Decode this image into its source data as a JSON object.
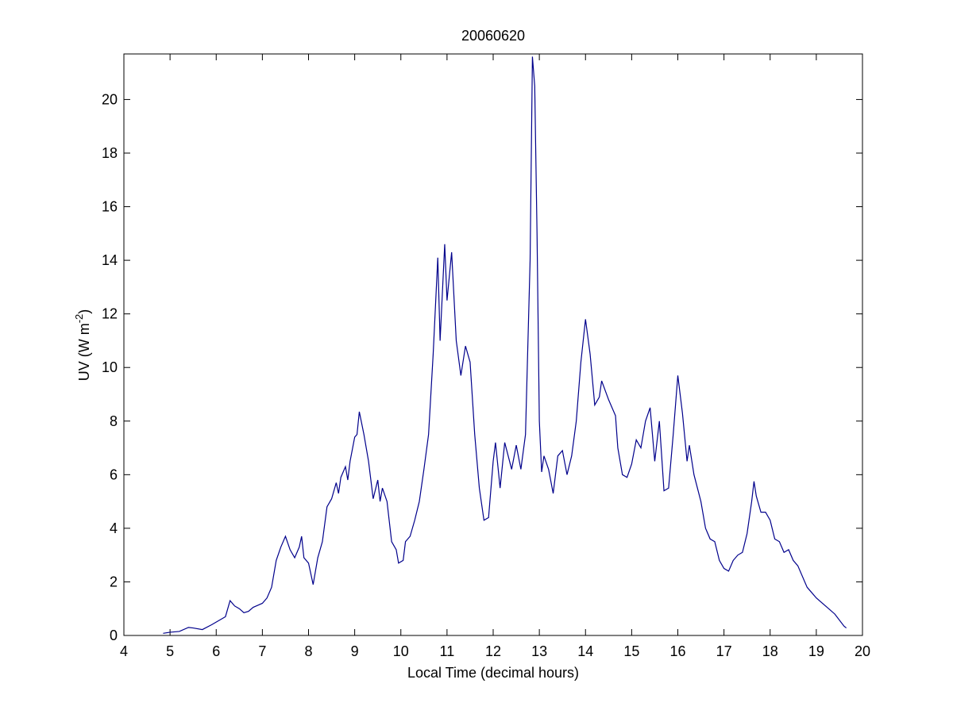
{
  "chart_data": {
    "type": "line",
    "title": "20060620",
    "xlabel": "Local Time (decimal hours)",
    "ylabel": {
      "text": "UV (W m",
      "superscript": "-2",
      "suffix": ")"
    },
    "xlim": [
      4,
      20
    ],
    "ylim": [
      0,
      21.7
    ],
    "xticks": [
      4,
      5,
      6,
      7,
      8,
      9,
      10,
      11,
      12,
      13,
      14,
      15,
      16,
      17,
      18,
      19,
      20
    ],
    "yticks": [
      0,
      2,
      4,
      6,
      8,
      10,
      12,
      14,
      16,
      18,
      20
    ],
    "grid": false,
    "series": [
      {
        "color": "#00008b",
        "x": [
          4.85,
          5.0,
          5.2,
          5.4,
          5.5,
          5.7,
          5.9,
          6.1,
          6.2,
          6.3,
          6.4,
          6.5,
          6.6,
          6.7,
          6.8,
          7.0,
          7.1,
          7.2,
          7.3,
          7.4,
          7.5,
          7.6,
          7.7,
          7.8,
          7.85,
          7.9,
          8.0,
          8.1,
          8.2,
          8.3,
          8.4,
          8.5,
          8.6,
          8.65,
          8.7,
          8.8,
          8.85,
          8.9,
          9.0,
          9.05,
          9.1,
          9.2,
          9.3,
          9.4,
          9.5,
          9.55,
          9.6,
          9.7,
          9.8,
          9.9,
          9.95,
          10.05,
          10.1,
          10.2,
          10.3,
          10.4,
          10.5,
          10.6,
          10.7,
          10.8,
          10.85,
          10.95,
          11.0,
          11.1,
          11.2,
          11.3,
          11.4,
          11.5,
          11.6,
          11.7,
          11.8,
          11.9,
          12.0,
          12.05,
          12.15,
          12.25,
          12.4,
          12.5,
          12.6,
          12.7,
          12.8,
          12.85,
          12.9,
          12.95,
          13.0,
          13.05,
          13.1,
          13.2,
          13.3,
          13.4,
          13.5,
          13.6,
          13.7,
          13.8,
          13.9,
          14.0,
          14.1,
          14.2,
          14.3,
          14.35,
          14.5,
          14.65,
          14.7,
          14.8,
          14.9,
          15.0,
          15.1,
          15.2,
          15.3,
          15.4,
          15.5,
          15.6,
          15.7,
          15.8,
          15.9,
          16.0,
          16.1,
          16.2,
          16.25,
          16.35,
          16.5,
          16.6,
          16.7,
          16.8,
          16.9,
          17.0,
          17.1,
          17.2,
          17.3,
          17.4,
          17.5,
          17.6,
          17.65,
          17.7,
          17.8,
          17.9,
          18.0,
          18.1,
          18.2,
          18.3,
          18.4,
          18.5,
          18.6,
          18.8,
          18.9,
          19.0,
          19.2,
          19.4,
          19.6,
          19.65
        ],
        "values": [
          0.08,
          0.12,
          0.15,
          0.3,
          0.28,
          0.22,
          0.4,
          0.6,
          0.7,
          1.3,
          1.1,
          1.0,
          0.85,
          0.9,
          1.05,
          1.2,
          1.4,
          1.8,
          2.8,
          3.3,
          3.7,
          3.2,
          2.9,
          3.3,
          3.7,
          2.9,
          2.7,
          1.9,
          2.9,
          3.5,
          4.8,
          5.1,
          5.7,
          5.3,
          5.9,
          6.3,
          5.8,
          6.5,
          7.4,
          7.5,
          8.35,
          7.5,
          6.5,
          5.1,
          5.8,
          5.0,
          5.5,
          5.0,
          3.5,
          3.2,
          2.7,
          2.8,
          3.5,
          3.7,
          4.3,
          5.0,
          6.2,
          7.5,
          10.5,
          14.1,
          11.0,
          14.6,
          12.5,
          14.3,
          11.0,
          9.7,
          10.8,
          10.2,
          7.5,
          5.5,
          4.3,
          4.4,
          6.5,
          7.2,
          5.5,
          7.2,
          6.2,
          7.1,
          6.2,
          7.5,
          14,
          21.6,
          20.5,
          15,
          8,
          6.1,
          6.7,
          6.2,
          5.3,
          6.7,
          6.9,
          6.0,
          6.7,
          8.0,
          10.2,
          11.8,
          10.5,
          8.6,
          8.9,
          9.5,
          8.8,
          8.2,
          7.0,
          6.0,
          5.9,
          6.4,
          7.3,
          7.0,
          8.0,
          8.5,
          6.5,
          8.0,
          5.4,
          5.5,
          7.5,
          9.7,
          8.3,
          6.5,
          7.1,
          6.0,
          5.0,
          4.0,
          3.6,
          3.5,
          2.8,
          2.5,
          2.4,
          2.8,
          3.0,
          3.1,
          3.8,
          5.0,
          5.75,
          5.2,
          4.6,
          4.6,
          4.3,
          3.6,
          3.5,
          3.1,
          3.2,
          2.8,
          2.6,
          1.8,
          1.6,
          1.4,
          1.1,
          0.8,
          0.35,
          0.28
        ]
      }
    ]
  }
}
